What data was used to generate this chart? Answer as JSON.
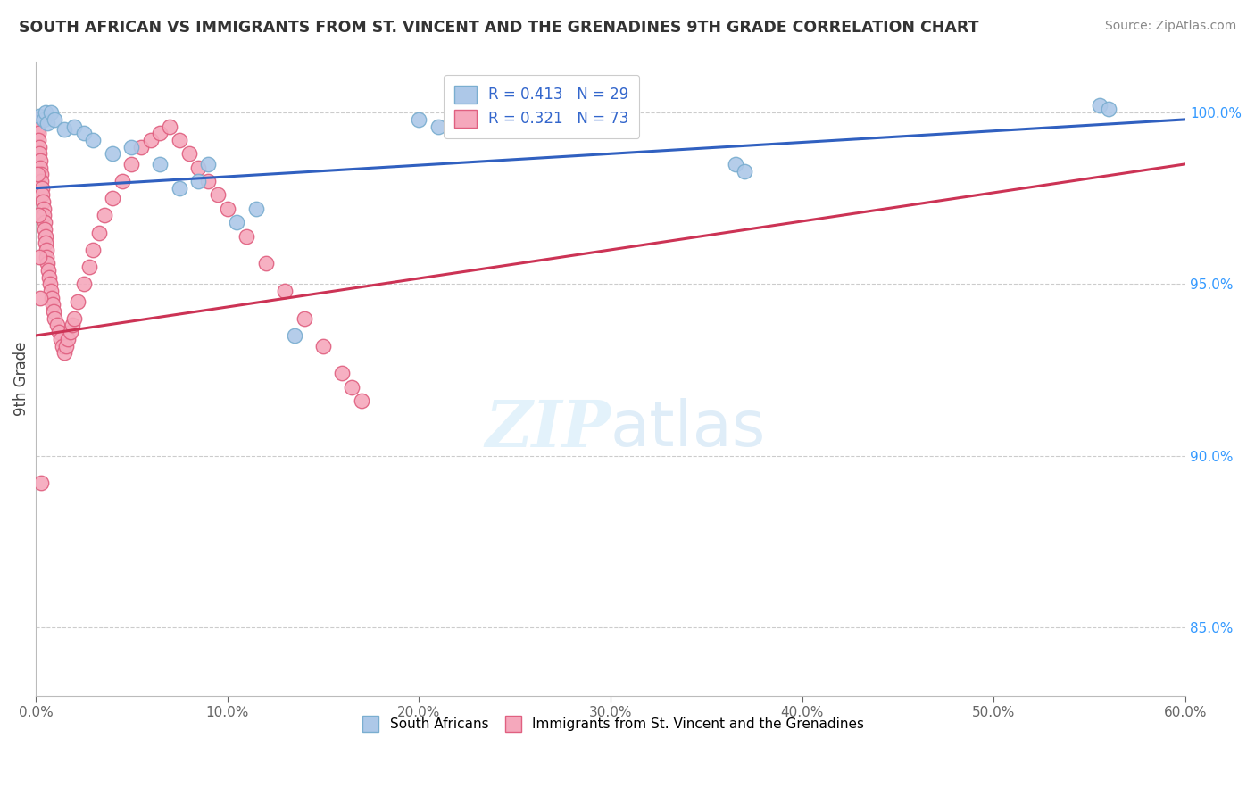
{
  "title": "SOUTH AFRICAN VS IMMIGRANTS FROM ST. VINCENT AND THE GRENADINES 9TH GRADE CORRELATION CHART",
  "source": "Source: ZipAtlas.com",
  "ylabel": "9th Grade",
  "xlim": [
    0.0,
    60.0
  ],
  "ylim": [
    83.0,
    101.5
  ],
  "yticks": [
    85.0,
    90.0,
    95.0,
    100.0
  ],
  "xticks": [
    0.0,
    10.0,
    20.0,
    30.0,
    40.0,
    50.0,
    60.0
  ],
  "blue_R": 0.413,
  "blue_N": 29,
  "pink_R": 0.321,
  "pink_N": 73,
  "blue_color": "#adc8e8",
  "pink_color": "#f5a8bc",
  "blue_edge": "#7aaed0",
  "pink_edge": "#e06080",
  "trendline_blue": "#3060c0",
  "trendline_pink": "#cc3355",
  "legend_text_color": "#3366cc",
  "background_color": "#ffffff",
  "blue_x": [
    0.2,
    0.4,
    0.5,
    0.6,
    0.8,
    1.0,
    1.5,
    2.0,
    2.5,
    3.0,
    4.0,
    5.0,
    6.5,
    7.5,
    8.5,
    9.0,
    10.5,
    11.5,
    13.5,
    20.0,
    21.0,
    22.0,
    25.5,
    26.0,
    27.0,
    36.5,
    37.0,
    55.5,
    56.0
  ],
  "blue_y": [
    99.9,
    99.8,
    100.0,
    99.7,
    100.0,
    99.8,
    99.5,
    99.6,
    99.4,
    99.2,
    98.8,
    99.0,
    98.5,
    97.8,
    98.0,
    98.5,
    96.8,
    97.2,
    93.5,
    99.8,
    99.6,
    99.5,
    99.7,
    99.8,
    99.6,
    98.5,
    98.3,
    100.2,
    100.1
  ],
  "pink_x": [
    0.05,
    0.08,
    0.1,
    0.12,
    0.15,
    0.18,
    0.2,
    0.22,
    0.25,
    0.28,
    0.3,
    0.32,
    0.35,
    0.38,
    0.4,
    0.42,
    0.45,
    0.48,
    0.5,
    0.52,
    0.55,
    0.58,
    0.6,
    0.65,
    0.7,
    0.75,
    0.8,
    0.85,
    0.9,
    0.95,
    1.0,
    1.1,
    1.2,
    1.3,
    1.4,
    1.5,
    1.6,
    1.7,
    1.8,
    1.9,
    2.0,
    2.2,
    2.5,
    2.8,
    3.0,
    3.3,
    3.6,
    4.0,
    4.5,
    5.0,
    5.5,
    6.0,
    6.5,
    7.0,
    7.5,
    8.0,
    8.5,
    9.0,
    9.5,
    10.0,
    11.0,
    12.0,
    13.0,
    14.0,
    15.0,
    16.0,
    16.5,
    17.0,
    0.1,
    0.15,
    0.2,
    0.25,
    0.3
  ],
  "pink_y": [
    99.8,
    99.6,
    99.5,
    99.4,
    99.2,
    99.0,
    98.8,
    98.6,
    98.4,
    98.2,
    98.0,
    97.8,
    97.6,
    97.4,
    97.2,
    97.0,
    96.8,
    96.6,
    96.4,
    96.2,
    96.0,
    95.8,
    95.6,
    95.4,
    95.2,
    95.0,
    94.8,
    94.6,
    94.4,
    94.2,
    94.0,
    93.8,
    93.6,
    93.4,
    93.2,
    93.0,
    93.2,
    93.4,
    93.6,
    93.8,
    94.0,
    94.5,
    95.0,
    95.5,
    96.0,
    96.5,
    97.0,
    97.5,
    98.0,
    98.5,
    99.0,
    99.2,
    99.4,
    99.6,
    99.2,
    98.8,
    98.4,
    98.0,
    97.6,
    97.2,
    96.4,
    95.6,
    94.8,
    94.0,
    93.2,
    92.4,
    92.0,
    91.6,
    98.2,
    97.0,
    95.8,
    94.6,
    89.2
  ]
}
